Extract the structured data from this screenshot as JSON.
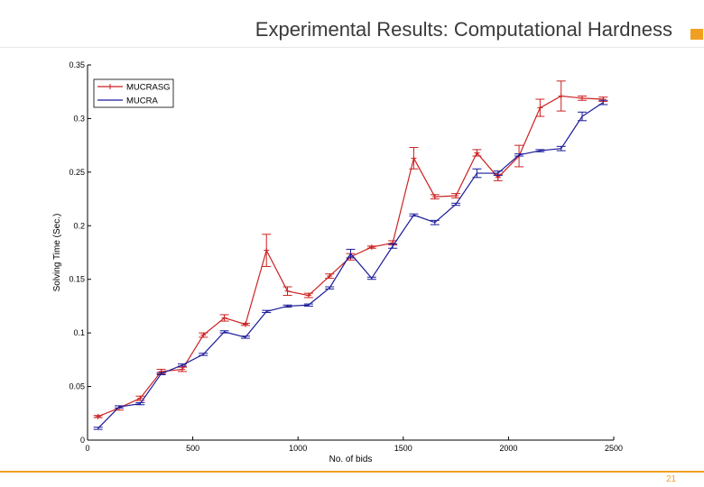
{
  "slide": {
    "title": "Experimental Results: Computational Hardness",
    "page_number": "21",
    "accent_color": "#f0a020"
  },
  "chart_data": {
    "type": "line",
    "title": "",
    "xlabel": "No. of bids",
    "ylabel": "Solving Time (Sec.)",
    "xlim": [
      0,
      2500
    ],
    "ylim": [
      0,
      0.35
    ],
    "xticks": [
      0,
      500,
      1000,
      1500,
      2000,
      2500
    ],
    "yticks": [
      0,
      0.05,
      0.1,
      0.15,
      0.2,
      0.25,
      0.3,
      0.35
    ],
    "xtick_labels": [
      "0",
      "500",
      "1000",
      "1500",
      "2000",
      "2500"
    ],
    "ytick_labels": [
      "0",
      "0.05",
      "0.1",
      "0.15",
      "0.2",
      "0.25",
      "0.3",
      "0.35"
    ],
    "grid": false,
    "legend_position": "top-left",
    "x": [
      50,
      150,
      250,
      350,
      450,
      550,
      650,
      750,
      850,
      950,
      1050,
      1150,
      1250,
      1350,
      1450,
      1550,
      1650,
      1750,
      1850,
      1950,
      2050,
      2150,
      2250,
      2350,
      2450
    ],
    "series": [
      {
        "name": "MUCRASG",
        "color": "#cc2222",
        "marker": "plus",
        "values": [
          0.022,
          0.03,
          0.039,
          0.064,
          0.066,
          0.098,
          0.114,
          0.108,
          0.177,
          0.139,
          0.135,
          0.153,
          0.171,
          0.18,
          0.184,
          0.263,
          0.227,
          0.228,
          0.268,
          0.245,
          0.265,
          0.31,
          0.321,
          0.319,
          0.318
        ],
        "err": [
          0.001,
          0.002,
          0.002,
          0.002,
          0.002,
          0.002,
          0.003,
          0.001,
          0.015,
          0.004,
          0.002,
          0.002,
          0.003,
          0.001,
          0.002,
          0.01,
          0.002,
          0.002,
          0.003,
          0.003,
          0.01,
          0.008,
          0.014,
          0.002,
          0.002
        ]
      },
      {
        "name": "MUCRA",
        "color": "#1a1a9a",
        "marker": "none",
        "values": [
          0.011,
          0.031,
          0.034,
          0.062,
          0.07,
          0.08,
          0.101,
          0.096,
          0.12,
          0.125,
          0.126,
          0.142,
          0.174,
          0.151,
          0.181,
          0.21,
          0.203,
          0.22,
          0.249,
          0.249,
          0.266,
          0.27,
          0.272,
          0.302,
          0.315
        ],
        "err": [
          0.001,
          0.001,
          0.001,
          0.001,
          0.001,
          0.001,
          0.001,
          0.001,
          0.001,
          0.001,
          0.001,
          0.001,
          0.004,
          0.001,
          0.002,
          0.001,
          0.002,
          0.001,
          0.004,
          0.002,
          0.001,
          0.001,
          0.002,
          0.004,
          0.002
        ]
      }
    ]
  }
}
